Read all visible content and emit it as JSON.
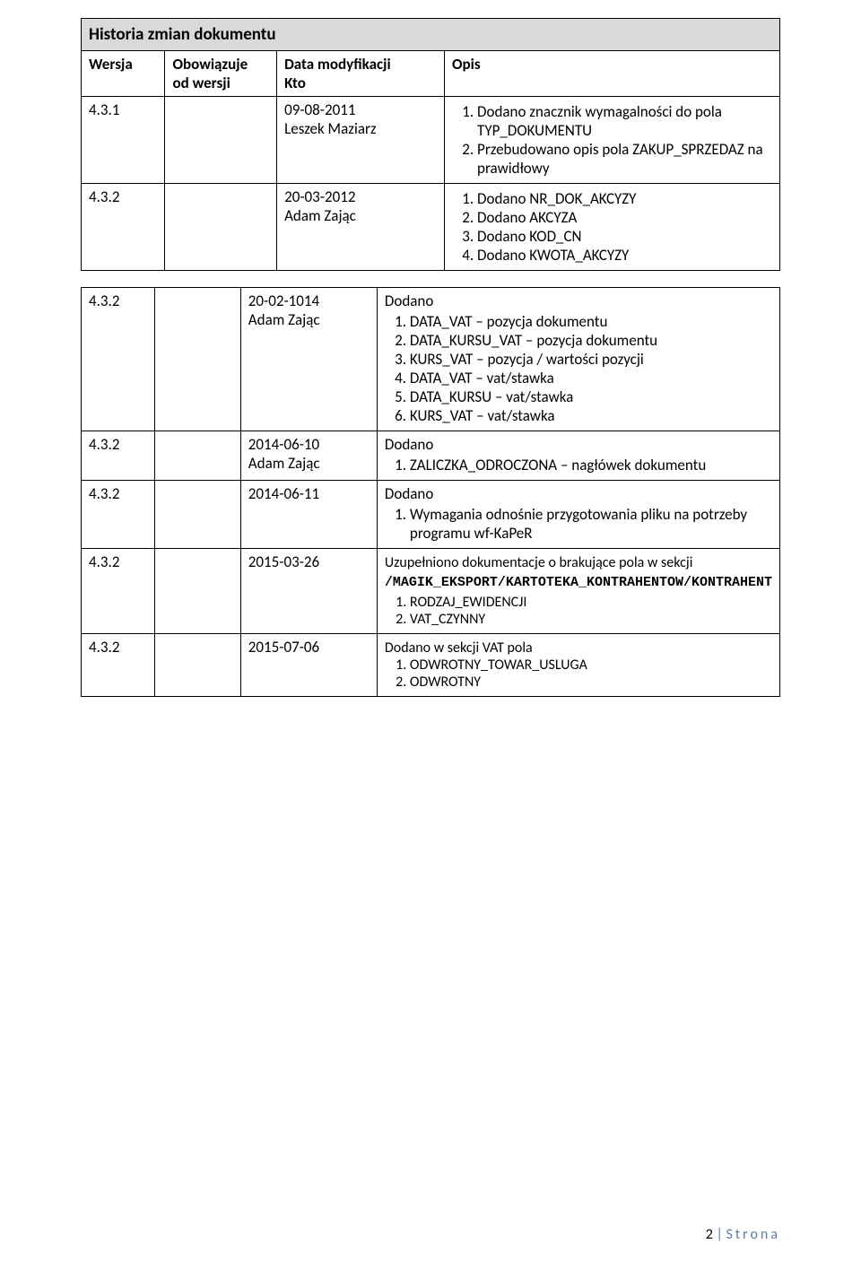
{
  "table": {
    "title": "Historia zmian dokumentu",
    "headers": {
      "wersja": "Wersja",
      "obowiazuje": "Obowiązuje",
      "obowiazuje_sub": "od wersji",
      "data": "Data modyfikacji",
      "kto": "Kto",
      "opis": "Opis"
    },
    "first_rows": [
      {
        "wersja": "4.3.1",
        "obowiazuje": "",
        "data": "09-08-2011",
        "kto": "Leszek Maziarz",
        "opis_items": [
          "Dodano znacznik wymagalności do pola TYP_DOKUMENTU",
          "Przebudowano opis pola ZAKUP_SPRZEDAZ na prawidłowy"
        ]
      },
      {
        "wersja": "4.3.2",
        "obowiazuje": "",
        "data": "20-03-2012",
        "kto": "Adam Zając",
        "opis_items": [
          "Dodano NR_DOK_AKCYZY",
          "Dodano AKCYZA",
          "Dodano KOD_CN",
          "Dodano KWOTA_AKCYZY"
        ]
      }
    ],
    "second_rows": [
      {
        "wersja": "4.3.2",
        "obowiazuje": "",
        "data": "20-02-1014",
        "kto": "Adam Zając",
        "lead": "Dodano",
        "opis_items": [
          "DATA_VAT – pozycja dokumentu",
          "DATA_KURSU_VAT – pozycja dokumentu",
          "KURS_VAT – pozycja / wartości pozycji",
          "DATA_VAT – vat/stawka",
          "DATA_KURSU – vat/stawka",
          "KURS_VAT – vat/stawka"
        ]
      },
      {
        "wersja": "4.3.2",
        "obowiazuje": "",
        "data": "2014-06-10",
        "kto": "Adam Zając",
        "lead": "Dodano",
        "opis_items": [
          "ZALICZKA_ODROCZONA – nagłówek dokumentu"
        ]
      },
      {
        "wersja": "4.3.2",
        "obowiazuje": "",
        "data": "2014-06-11",
        "kto": "",
        "lead": "Dodano",
        "opis_items": [
          "Wymagania odnośnie przygotowania pliku na potrzeby programu wf-KaPeR"
        ]
      }
    ],
    "row_2015_03": {
      "wersja": "4.3.2",
      "obowiazuje": "",
      "data": "2015-03-26",
      "kto": "",
      "lead_plain": "Uzupełniono dokumentacje o brakujące pola w sekcji",
      "mono_path": "/MAGIK_EKSPORT/KARTOTEKA_KONTRAHENTOW/KONTRAHENT",
      "items": [
        "RODZAJ_EWIDENCJI",
        "VAT_CZYNNY"
      ]
    },
    "row_2015_07": {
      "wersja": "4.3.2",
      "obowiazuje": "",
      "data": "2015-07-06",
      "kto": "",
      "lead_plain": "Dodano w sekcji VAT pola",
      "items": [
        "ODWROTNY_TOWAR_USLUGA",
        "ODWROTNY"
      ]
    }
  },
  "footer": {
    "page_num": "2",
    "sep": " | ",
    "label": "Strona"
  }
}
